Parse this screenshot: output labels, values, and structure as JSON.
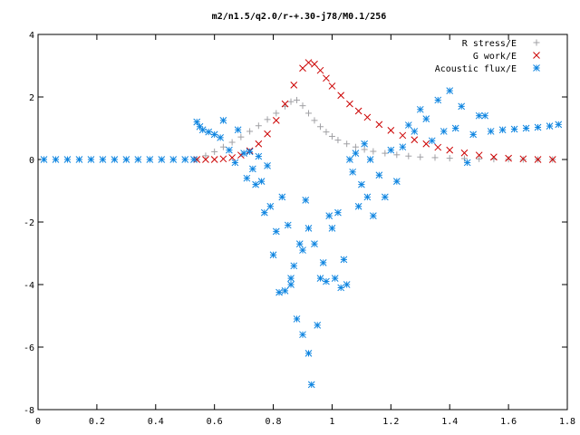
{
  "chart_data": {
    "type": "scatter",
    "title": "m2/n1.5/q2.0/r-+.30-j78/M0.1/256",
    "xlabel": "",
    "ylabel": "",
    "xlim": [
      0,
      1.8
    ],
    "ylim": [
      -8,
      4
    ],
    "xticks": [
      "0",
      "0.2",
      "0.4",
      "0.6",
      "0.8",
      "1",
      "1.2",
      "1.4",
      "1.6",
      "1.8"
    ],
    "yticks": [
      "4",
      "2",
      "0",
      "-2",
      "-4",
      "-6",
      "-8"
    ],
    "grid": false,
    "legend": "top-right",
    "series": [
      {
        "name": "R stress/E",
        "color": "#a0a0a4",
        "marker": "plus",
        "points": [
          [
            0.54,
            0.0
          ],
          [
            0.57,
            0.12
          ],
          [
            0.6,
            0.25
          ],
          [
            0.63,
            0.4
          ],
          [
            0.66,
            0.55
          ],
          [
            0.69,
            0.72
          ],
          [
            0.72,
            0.9
          ],
          [
            0.75,
            1.08
          ],
          [
            0.78,
            1.28
          ],
          [
            0.81,
            1.48
          ],
          [
            0.84,
            1.7
          ],
          [
            0.86,
            1.85
          ],
          [
            0.88,
            1.9
          ],
          [
            0.9,
            1.72
          ],
          [
            0.92,
            1.48
          ],
          [
            0.94,
            1.25
          ],
          [
            0.96,
            1.05
          ],
          [
            0.98,
            0.88
          ],
          [
            1.0,
            0.74
          ],
          [
            1.02,
            0.62
          ],
          [
            1.05,
            0.5
          ],
          [
            1.08,
            0.4
          ],
          [
            1.11,
            0.32
          ],
          [
            1.14,
            0.26
          ],
          [
            1.18,
            0.2
          ],
          [
            1.22,
            0.15
          ],
          [
            1.26,
            0.11
          ],
          [
            1.3,
            0.08
          ],
          [
            1.35,
            0.06
          ],
          [
            1.4,
            0.04
          ],
          [
            1.45,
            0.03
          ],
          [
            1.5,
            0.02
          ],
          [
            1.55,
            0.01
          ],
          [
            1.6,
            0.01
          ],
          [
            1.65,
            0.0
          ],
          [
            1.7,
            0.0
          ],
          [
            1.75,
            0.0
          ]
        ]
      },
      {
        "name": "G work/E",
        "color": "#cc0000",
        "marker": "cross",
        "points": [
          [
            0.54,
            0.0
          ],
          [
            0.57,
            0.0
          ],
          [
            0.6,
            0.0
          ],
          [
            0.63,
            0.02
          ],
          [
            0.66,
            0.06
          ],
          [
            0.69,
            0.14
          ],
          [
            0.72,
            0.28
          ],
          [
            0.75,
            0.5
          ],
          [
            0.78,
            0.82
          ],
          [
            0.81,
            1.25
          ],
          [
            0.84,
            1.78
          ],
          [
            0.87,
            2.38
          ],
          [
            0.9,
            2.92
          ],
          [
            0.92,
            3.1
          ],
          [
            0.94,
            3.05
          ],
          [
            0.96,
            2.85
          ],
          [
            0.98,
            2.6
          ],
          [
            1.0,
            2.35
          ],
          [
            1.03,
            2.05
          ],
          [
            1.06,
            1.78
          ],
          [
            1.09,
            1.55
          ],
          [
            1.12,
            1.35
          ],
          [
            1.16,
            1.12
          ],
          [
            1.2,
            0.93
          ],
          [
            1.24,
            0.77
          ],
          [
            1.28,
            0.63
          ],
          [
            1.32,
            0.5
          ],
          [
            1.36,
            0.39
          ],
          [
            1.4,
            0.3
          ],
          [
            1.45,
            0.21
          ],
          [
            1.5,
            0.14
          ],
          [
            1.55,
            0.08
          ],
          [
            1.6,
            0.04
          ],
          [
            1.65,
            0.02
          ],
          [
            1.7,
            0.0
          ],
          [
            1.75,
            0.0
          ]
        ]
      },
      {
        "name": "Acoustic flux/E",
        "color": "#0d84e0",
        "marker": "star",
        "points": [
          [
            0.02,
            0.0
          ],
          [
            0.06,
            0.0
          ],
          [
            0.1,
            0.0
          ],
          [
            0.14,
            0.0
          ],
          [
            0.18,
            0.0
          ],
          [
            0.22,
            0.0
          ],
          [
            0.26,
            0.0
          ],
          [
            0.3,
            0.0
          ],
          [
            0.34,
            0.0
          ],
          [
            0.38,
            0.0
          ],
          [
            0.42,
            0.0
          ],
          [
            0.46,
            0.0
          ],
          [
            0.5,
            0.0
          ],
          [
            0.53,
            0.0
          ],
          [
            0.54,
            1.2
          ],
          [
            0.55,
            1.05
          ],
          [
            0.56,
            0.95
          ],
          [
            0.58,
            0.88
          ],
          [
            0.6,
            0.8
          ],
          [
            0.62,
            0.7
          ],
          [
            0.63,
            1.25
          ],
          [
            0.65,
            0.3
          ],
          [
            0.67,
            -0.1
          ],
          [
            0.68,
            0.95
          ],
          [
            0.7,
            0.2
          ],
          [
            0.71,
            -0.6
          ],
          [
            0.72,
            0.25
          ],
          [
            0.73,
            -0.3
          ],
          [
            0.74,
            -0.8
          ],
          [
            0.75,
            0.1
          ],
          [
            0.76,
            -0.7
          ],
          [
            0.77,
            -1.7
          ],
          [
            0.78,
            -0.2
          ],
          [
            0.79,
            -1.5
          ],
          [
            0.8,
            -3.05
          ],
          [
            0.81,
            -2.3
          ],
          [
            0.82,
            -4.25
          ],
          [
            0.83,
            -1.2
          ],
          [
            0.84,
            -4.2
          ],
          [
            0.85,
            -2.1
          ],
          [
            0.86,
            -3.8
          ],
          [
            0.86,
            -4.0
          ],
          [
            0.87,
            -3.4
          ],
          [
            0.88,
            -5.1
          ],
          [
            0.89,
            -2.7
          ],
          [
            0.9,
            -5.6
          ],
          [
            0.9,
            -2.9
          ],
          [
            0.91,
            -1.3
          ],
          [
            0.92,
            -6.2
          ],
          [
            0.92,
            -2.2
          ],
          [
            0.93,
            -7.2
          ],
          [
            0.94,
            -2.7
          ],
          [
            0.95,
            -5.3
          ],
          [
            0.96,
            -3.8
          ],
          [
            0.97,
            -3.3
          ],
          [
            0.98,
            -3.9
          ],
          [
            0.99,
            -1.8
          ],
          [
            1.0,
            -2.2
          ],
          [
            1.01,
            -3.8
          ],
          [
            1.02,
            -1.7
          ],
          [
            1.03,
            -4.1
          ],
          [
            1.04,
            -3.2
          ],
          [
            1.05,
            -4.0
          ],
          [
            1.06,
            0.0
          ],
          [
            1.07,
            -0.4
          ],
          [
            1.08,
            0.2
          ],
          [
            1.09,
            -1.5
          ],
          [
            1.1,
            -0.8
          ],
          [
            1.11,
            0.5
          ],
          [
            1.12,
            -1.2
          ],
          [
            1.13,
            0.0
          ],
          [
            1.14,
            -1.8
          ],
          [
            1.16,
            -0.5
          ],
          [
            1.18,
            -1.2
          ],
          [
            1.2,
            0.3
          ],
          [
            1.22,
            -0.7
          ],
          [
            1.24,
            0.4
          ],
          [
            1.26,
            1.1
          ],
          [
            1.28,
            0.9
          ],
          [
            1.3,
            1.6
          ],
          [
            1.32,
            1.3
          ],
          [
            1.34,
            0.6
          ],
          [
            1.36,
            1.9
          ],
          [
            1.38,
            0.9
          ],
          [
            1.4,
            2.2
          ],
          [
            1.42,
            1.0
          ],
          [
            1.44,
            1.7
          ],
          [
            1.46,
            -0.1
          ],
          [
            1.48,
            0.8
          ],
          [
            1.5,
            1.4
          ],
          [
            1.52,
            1.4
          ],
          [
            1.54,
            0.9
          ],
          [
            1.58,
            0.95
          ],
          [
            1.62,
            0.97
          ],
          [
            1.66,
            1.0
          ],
          [
            1.7,
            1.03
          ],
          [
            1.74,
            1.07
          ],
          [
            1.77,
            1.12
          ]
        ]
      }
    ]
  }
}
